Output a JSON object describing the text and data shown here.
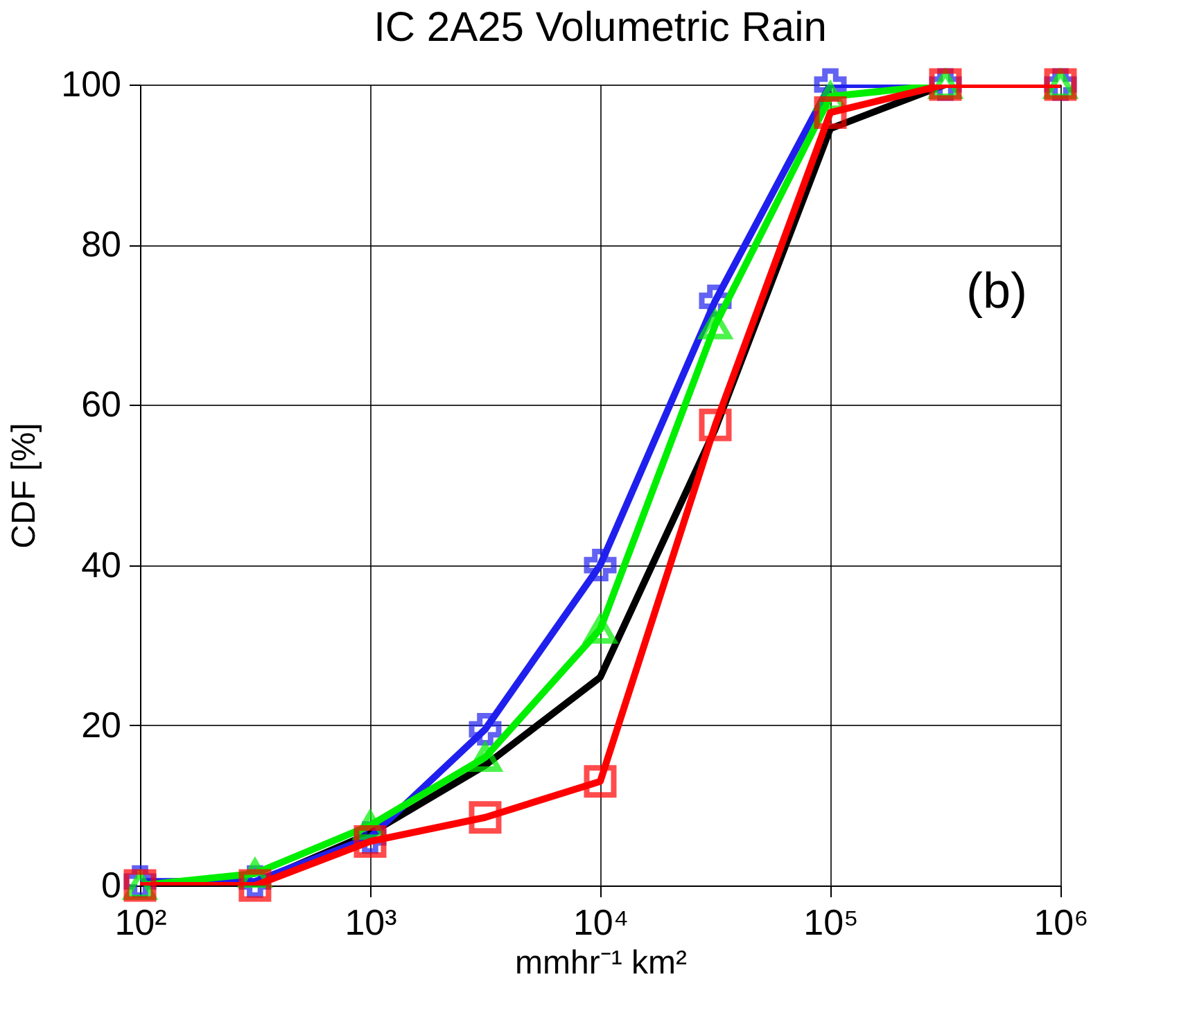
{
  "chart_data": {
    "type": "line",
    "title": "IC 2A25 Volumetric Rain",
    "xlabel": "mmhr⁻¹ km²",
    "ylabel": "CDF [%]",
    "x": [
      100,
      316,
      1000,
      3162,
      10000,
      31623,
      100000,
      316228,
      1000000
    ],
    "series": [
      {
        "color": "#000000",
        "marker": "none",
        "values": [
          0,
          0.3,
          6.5,
          15,
          26,
          57,
          94.5,
          100,
          100
        ]
      },
      {
        "color": "#2020ee",
        "marker": "cross",
        "values": [
          0.5,
          0.5,
          6,
          19.5,
          40,
          73,
          100,
          100,
          100
        ]
      },
      {
        "color": "#00ee00",
        "marker": "triangle",
        "values": [
          0,
          1.5,
          7.5,
          16,
          32,
          70,
          98.5,
          100,
          100
        ]
      },
      {
        "color": "#ff0000",
        "marker": "square",
        "values": [
          0,
          0,
          5.5,
          8.5,
          13,
          57.5,
          96.5,
          100,
          100
        ]
      }
    ],
    "log": "x",
    "xlim": [
      100,
      1000000
    ],
    "ylim": [
      0,
      100
    ],
    "xticks": [
      {
        "value": 100,
        "label": "10²"
      },
      {
        "value": 1000,
        "label": "10³"
      },
      {
        "value": 10000,
        "label": "10⁴"
      },
      {
        "value": 100000,
        "label": "10⁵"
      },
      {
        "value": 1000000,
        "label": "10⁶"
      }
    ],
    "yticks": [
      0,
      20,
      40,
      60,
      80,
      100
    ],
    "grid": true,
    "line_style": "solid",
    "annotations": [
      "(b)"
    ]
  }
}
